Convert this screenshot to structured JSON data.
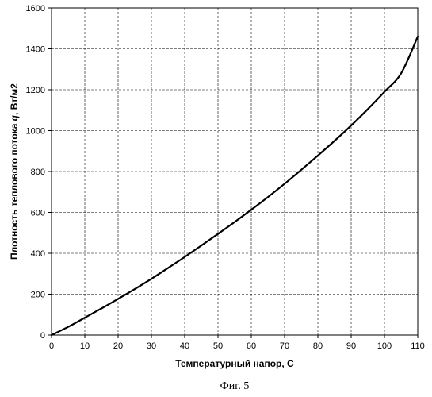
{
  "chart_data": {
    "type": "line",
    "title": "",
    "xlabel": "Температурный напор, С",
    "ylabel_prefix": "Плотность теплового потока ",
    "ylabel_symbol": "q",
    "ylabel_suffix": ", Вт/м2",
    "xlim": [
      0,
      110
    ],
    "ylim": [
      0,
      1600
    ],
    "xticks": [
      0,
      10,
      20,
      30,
      40,
      50,
      60,
      70,
      80,
      90,
      100,
      110
    ],
    "yticks": [
      0,
      200,
      400,
      600,
      800,
      1000,
      1200,
      1400,
      1600
    ],
    "grid": true,
    "legend": "none",
    "series": [
      {
        "x": [
          0,
          5,
          10,
          15,
          20,
          25,
          30,
          35,
          40,
          45,
          50,
          55,
          60,
          65,
          70,
          75,
          80,
          85,
          90,
          95,
          100,
          105,
          110
        ],
        "y": [
          0,
          40,
          85,
          130,
          177,
          225,
          275,
          328,
          382,
          438,
          495,
          553,
          613,
          675,
          740,
          808,
          878,
          950,
          1025,
          1105,
          1190,
          1280,
          1460
        ]
      }
    ]
  },
  "caption": "Фиг. 5"
}
